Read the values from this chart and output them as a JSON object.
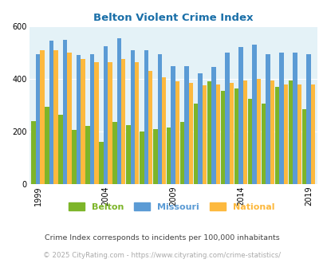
{
  "title": "Belton Violent Crime Index",
  "years": [
    1999,
    2000,
    2001,
    2002,
    2003,
    2004,
    2005,
    2006,
    2007,
    2008,
    2009,
    2010,
    2011,
    2012,
    2013,
    2014,
    2015,
    2016,
    2017,
    2018,
    2019
  ],
  "belton": [
    240,
    295,
    265,
    205,
    220,
    160,
    235,
    225,
    200,
    210,
    215,
    235,
    305,
    390,
    355,
    365,
    325,
    305,
    370,
    395,
    285
  ],
  "missouri": [
    495,
    545,
    550,
    490,
    495,
    525,
    555,
    510,
    510,
    495,
    450,
    450,
    420,
    445,
    500,
    520,
    530,
    495,
    500,
    500,
    495
  ],
  "national": [
    510,
    510,
    500,
    475,
    465,
    465,
    475,
    465,
    430,
    405,
    390,
    385,
    375,
    380,
    385,
    395,
    400,
    395,
    380,
    380,
    380
  ],
  "belton_color": "#7db529",
  "missouri_color": "#5b9bd5",
  "national_color": "#fdb93e",
  "bg_color": "#e4f2f7",
  "ylim": [
    0,
    600
  ],
  "yticks": [
    0,
    200,
    400,
    600
  ],
  "xtick_years": [
    1999,
    2004,
    2009,
    2014,
    2019
  ],
  "legend_labels": [
    "Belton",
    "Missouri",
    "National"
  ],
  "footnote1": "Crime Index corresponds to incidents per 100,000 inhabitants",
  "footnote2": "© 2025 CityRating.com - https://www.cityrating.com/crime-statistics/",
  "title_color": "#1a6fa8",
  "footnote1_color": "#444444",
  "footnote2_color": "#aaaaaa"
}
